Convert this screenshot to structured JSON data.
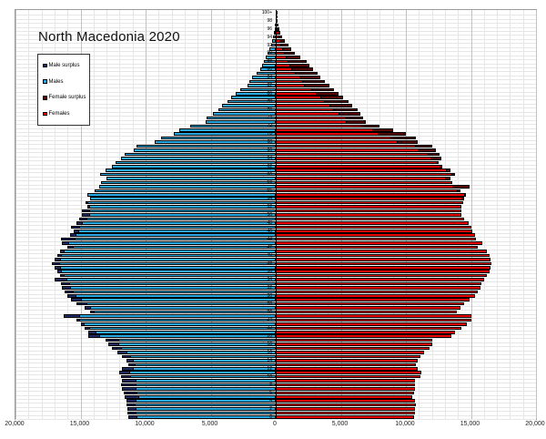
{
  "title": "North Macedonia 2020",
  "legend": {
    "items": [
      {
        "label": "Male surplus",
        "color": "#1E2A63"
      },
      {
        "label": "Males",
        "color": "#29A9E1"
      },
      {
        "label": "Female surplus",
        "color": "#5A0505"
      },
      {
        "label": "Females",
        "color": "#EC0000"
      }
    ]
  },
  "chart_data": {
    "type": "bar",
    "subtype": "population-pyramid",
    "title": "North Macedonia 2020",
    "x_axis": {
      "tick_labels": [
        "20,000",
        "15,000",
        "10,000",
        "5,000",
        "0",
        "5,000",
        "10,000",
        "15,000",
        "20,000"
      ],
      "max_per_side": 20000,
      "minor_grid_step": 1000,
      "major_grid_step": 5000
    },
    "age_axis": {
      "min": 0,
      "max": 100,
      "label_every": 2,
      "top_label": "100+"
    },
    "colors": {
      "males": "#29A9E1",
      "male_surplus": "#1E2A63",
      "females": "#EC0000",
      "female_surplus": "#5A0505",
      "bar_outline": "#000000",
      "grid_minor": "#E6E6E6",
      "grid_major": "#C2C2C2",
      "center_axis": "#000000"
    },
    "series": [
      {
        "name": "Males, by single year of age 0-100+",
        "values": [
          11300,
          11400,
          11400,
          11500,
          11500,
          11600,
          11700,
          11800,
          11900,
          11800,
          11900,
          12000,
          11800,
          11300,
          11500,
          11800,
          12200,
          12600,
          12900,
          13100,
          14400,
          14400,
          14700,
          15000,
          15300,
          16300,
          14300,
          14700,
          15300,
          15700,
          16000,
          16200,
          16400,
          16500,
          17000,
          16600,
          16800,
          17000,
          17200,
          17000,
          16800,
          16600,
          16000,
          16400,
          16500,
          15800,
          15500,
          15700,
          15300,
          15100,
          14900,
          14900,
          14500,
          14600,
          14300,
          14500,
          13900,
          13600,
          13400,
          13000,
          13500,
          13100,
          12600,
          12300,
          11900,
          11600,
          10900,
          10700,
          9300,
          8800,
          7800,
          7400,
          6600,
          5400,
          5300,
          4800,
          4400,
          4100,
          3700,
          3400,
          3100,
          2700,
          2200,
          2000,
          1800,
          1500,
          1200,
          1050,
          900,
          750,
          600,
          500,
          350,
          250,
          180,
          120,
          80,
          50,
          30,
          20,
          15
        ]
      },
      {
        "name": "Females, by single year of age 0-100+",
        "values": [
          10600,
          10700,
          10700,
          10800,
          10700,
          10500,
          10600,
          10700,
          10700,
          10700,
          11100,
          11200,
          10900,
          10800,
          10900,
          11100,
          11400,
          11800,
          12000,
          12000,
          13500,
          13800,
          14300,
          14700,
          15000,
          15000,
          13900,
          14200,
          14500,
          14900,
          15300,
          15500,
          15700,
          15800,
          16000,
          16200,
          16400,
          16500,
          16600,
          16500,
          16400,
          16200,
          15500,
          15900,
          15400,
          15300,
          15100,
          15000,
          14800,
          14500,
          14300,
          14300,
          14300,
          14400,
          14500,
          14600,
          14200,
          14900,
          13500,
          13400,
          13800,
          13400,
          12800,
          12500,
          12700,
          12600,
          12300,
          12000,
          10900,
          10800,
          10000,
          9000,
          8000,
          6900,
          6700,
          6500,
          6300,
          5900,
          5600,
          5200,
          4800,
          4500,
          4100,
          3800,
          3400,
          3200,
          2900,
          2600,
          2400,
          1900,
          1500,
          1200,
          950,
          700,
          500,
          350,
          250,
          180,
          120,
          80,
          60
        ]
      }
    ]
  }
}
